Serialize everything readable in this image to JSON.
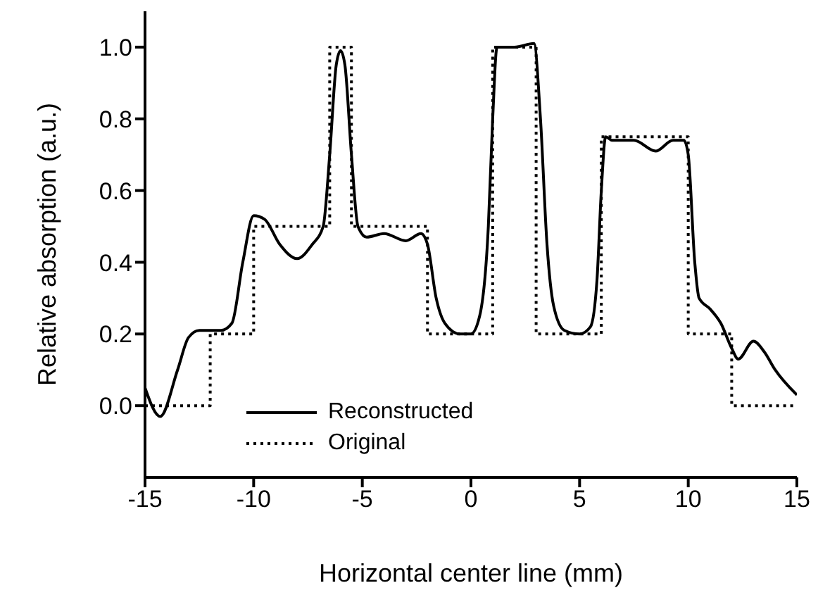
{
  "chart_data": {
    "type": "line",
    "xlabel": "Horizontal center line (mm)",
    "ylabel": "Relative absorption (a.u.)",
    "xlim": [
      -15,
      15
    ],
    "xticks": [
      -15,
      -10,
      -5,
      0,
      5,
      10,
      15
    ],
    "ylim": [
      -0.2,
      1.1
    ],
    "yticks": [
      {
        "value": 0,
        "label": "0.0"
      },
      0.2,
      0.4,
      0.6,
      0.8,
      {
        "value": 1,
        "label": "1.0"
      }
    ],
    "grid": false,
    "legend": "bottom left",
    "marker": "none",
    "series": [
      {
        "name": "Reconstructed",
        "color": "#000000",
        "line_style": "solid",
        "x": [
          -15,
          -14.3,
          -13.5,
          -13,
          -12.5,
          -11.5,
          -11,
          -10.5,
          -10,
          -9.5,
          -8.8,
          -8,
          -7.3,
          -6.8,
          -6.5,
          -6.2,
          -6,
          -5.8,
          -5.5,
          -5.2,
          -4.8,
          -4,
          -3,
          -2.3,
          -2,
          -1.6,
          -1.2,
          -0.5,
          0,
          0.4,
          0.8,
          1,
          1.2,
          2,
          2.9,
          3.2,
          3.5,
          3.8,
          4.3,
          5,
          5.5,
          5.8,
          6,
          6.2,
          6.5,
          7.5,
          8.5,
          9.3,
          9.8,
          10,
          10.3,
          10.5,
          11,
          11.5,
          12,
          12.3,
          13,
          13.5,
          14,
          15
        ],
        "values": [
          0.05,
          -0.03,
          0.1,
          0.19,
          0.21,
          0.21,
          0.23,
          0.4,
          0.53,
          0.52,
          0.45,
          0.41,
          0.45,
          0.5,
          0.7,
          0.95,
          0.99,
          0.95,
          0.7,
          0.5,
          0.47,
          0.48,
          0.46,
          0.48,
          0.45,
          0.3,
          0.23,
          0.2,
          0.2,
          0.25,
          0.5,
          0.8,
          1.0,
          1.0,
          1.01,
          0.8,
          0.45,
          0.28,
          0.21,
          0.2,
          0.22,
          0.35,
          0.6,
          0.75,
          0.74,
          0.74,
          0.71,
          0.74,
          0.74,
          0.7,
          0.4,
          0.3,
          0.27,
          0.23,
          0.16,
          0.13,
          0.18,
          0.15,
          0.1,
          0.03
        ]
      },
      {
        "name": "Original",
        "color": "#000000",
        "line_style": "dotted",
        "x": [
          -15,
          -12,
          -12,
          -10,
          -10,
          -6.5,
          -6.5,
          -5.5,
          -5.5,
          -2,
          -2,
          1,
          1,
          3,
          3,
          6,
          6,
          10,
          10,
          12,
          12,
          15
        ],
        "values": [
          0,
          0,
          0.2,
          0.2,
          0.5,
          0.5,
          1,
          1,
          0.5,
          0.5,
          0.2,
          0.2,
          1,
          1,
          0.2,
          0.2,
          0.75,
          0.75,
          0.2,
          0.2,
          0,
          0
        ]
      }
    ]
  }
}
